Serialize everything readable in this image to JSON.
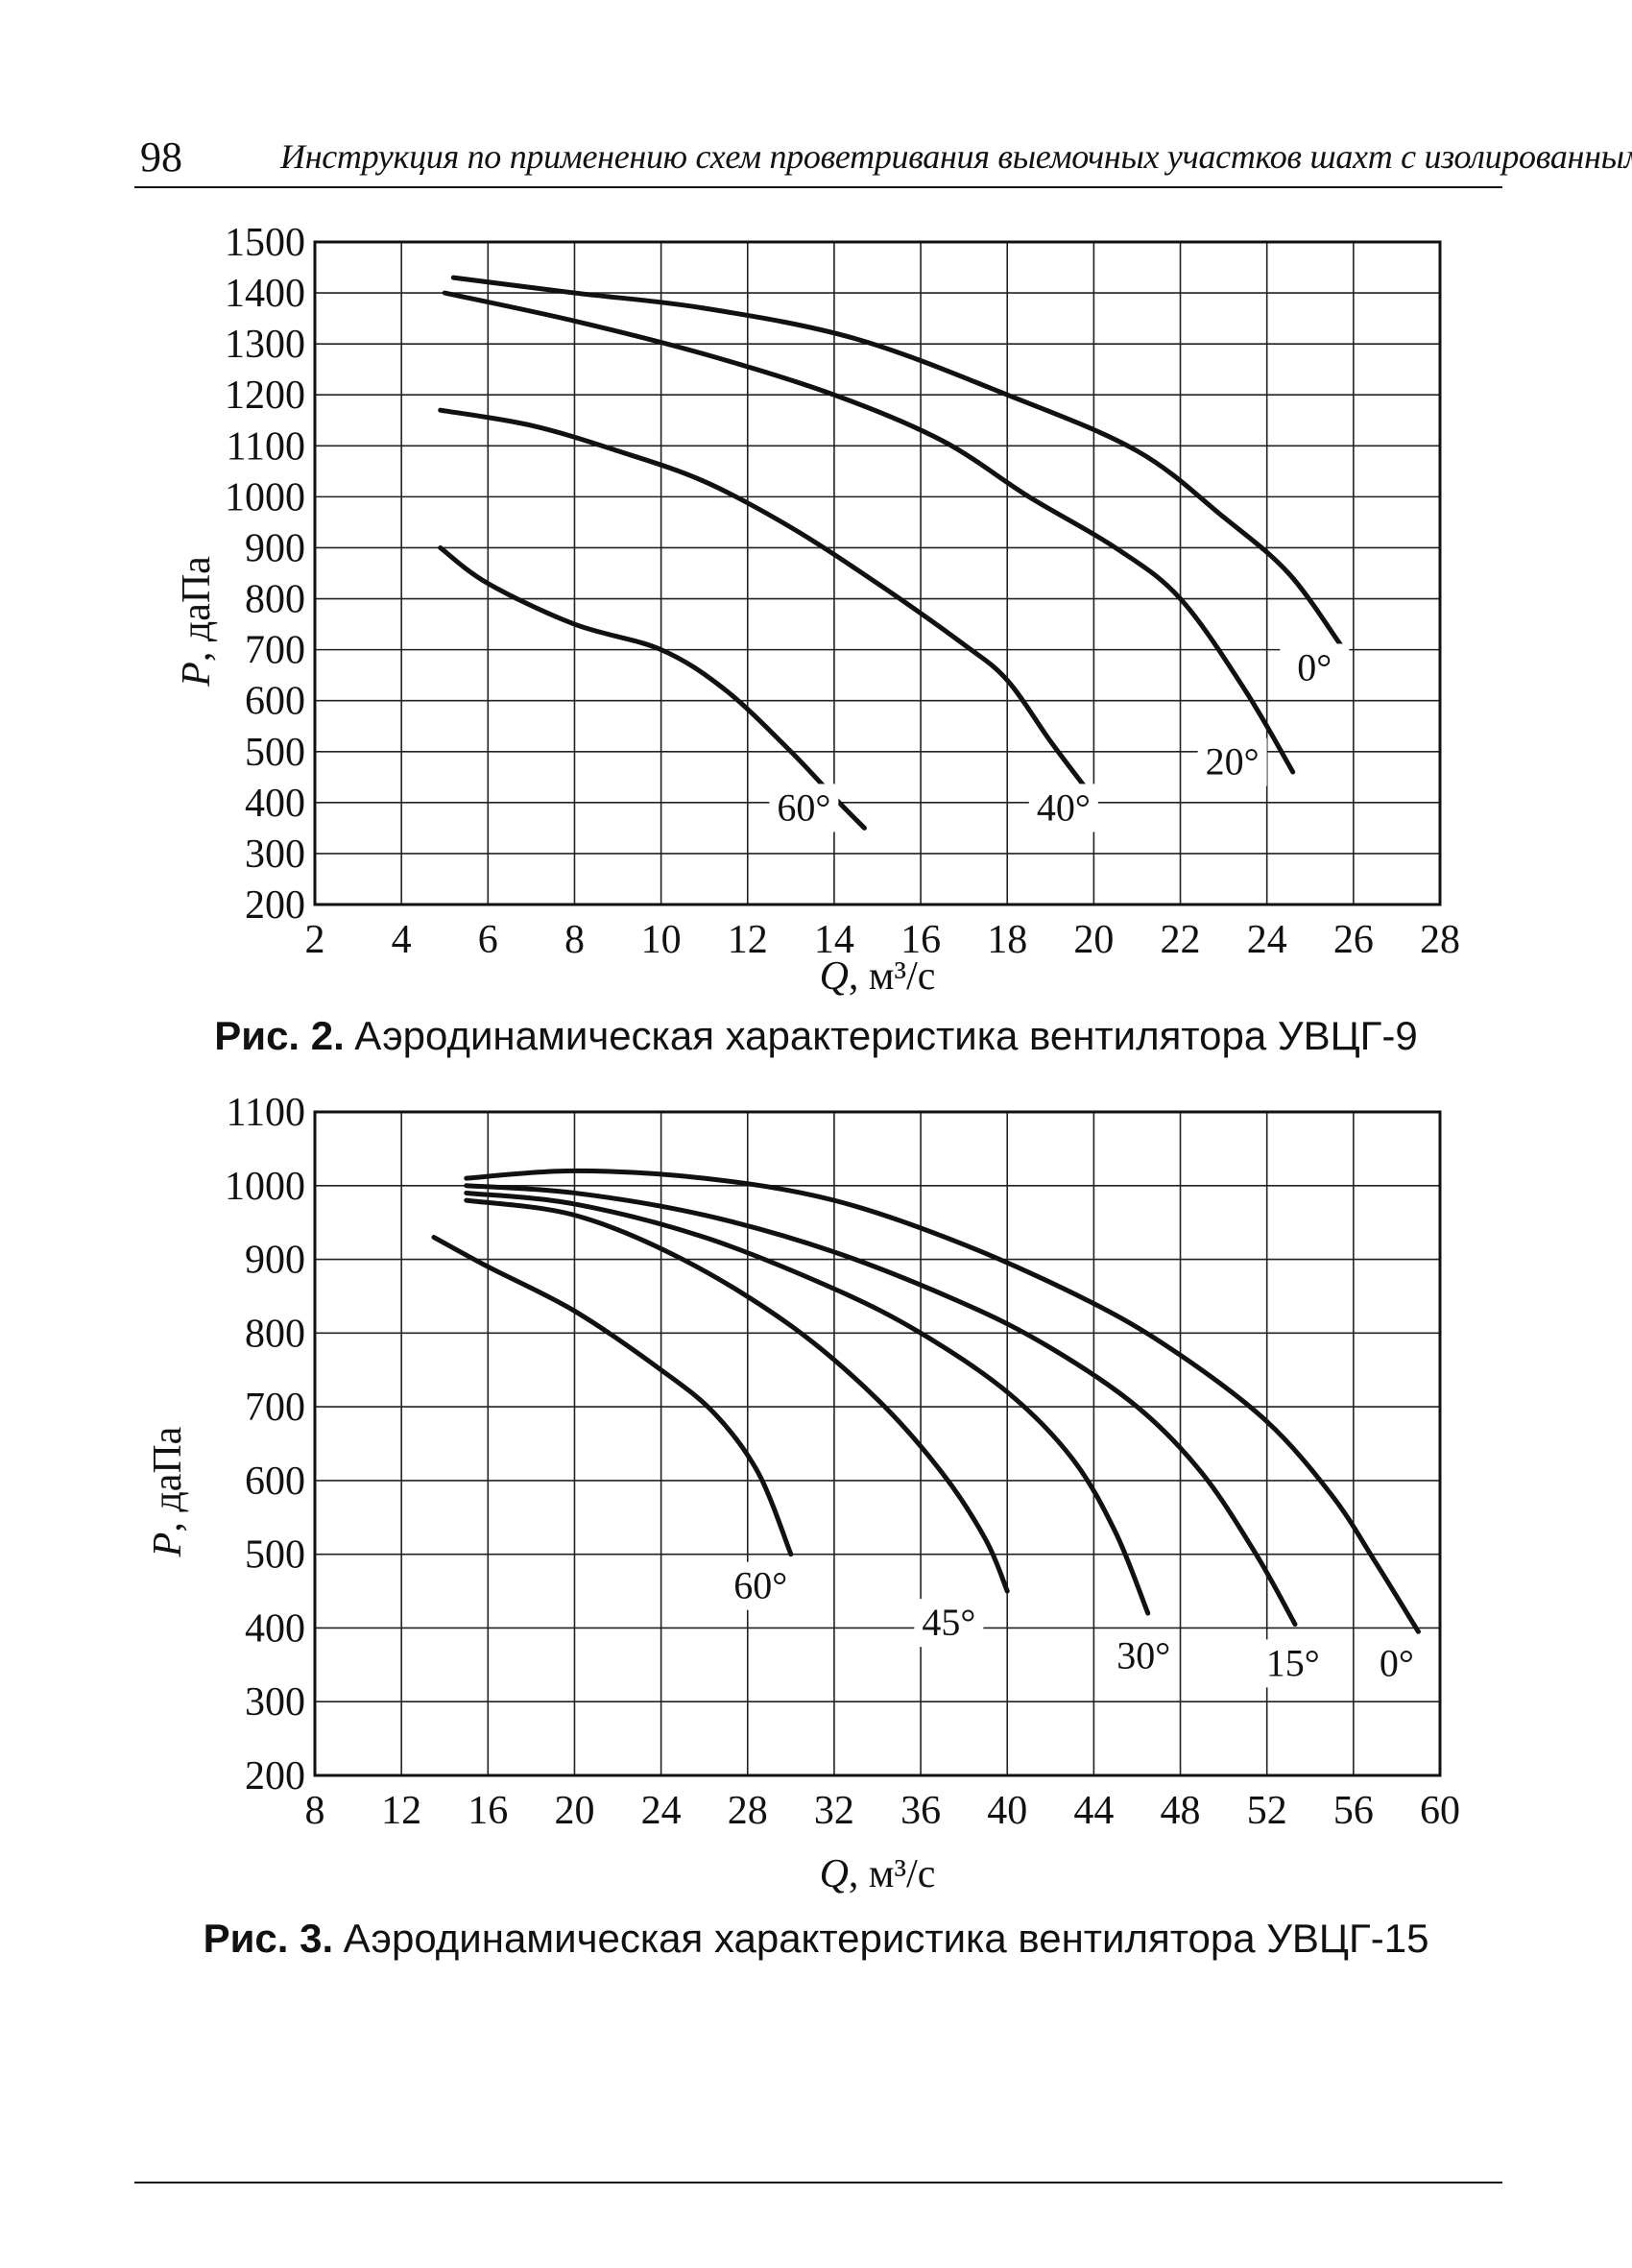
{
  "page": {
    "number": "98",
    "running_title": "Инструкция по применению схем проветривания выемочных участков шахт с изолированным"
  },
  "figures": [
    {
      "caption_prefix": "Рис. 2.",
      "caption_text": "Аэродинамическая характеристика вентилятора УВЦГ-9"
    },
    {
      "caption_prefix": "Рис. 3.",
      "caption_text": "Аэродинамическая характеристика вентилятора УВЦГ-15"
    }
  ],
  "chart_data": [
    {
      "type": "line",
      "xlabel_prefix": "Q",
      "xlabel_suffix": ", м³/с",
      "ylabel_prefix": "P",
      "ylabel_suffix": ", даПа",
      "xlim": [
        2,
        28
      ],
      "ylim": [
        200,
        1500
      ],
      "x_ticks": [
        2,
        4,
        6,
        8,
        10,
        12,
        14,
        16,
        18,
        20,
        22,
        24,
        26,
        28
      ],
      "y_ticks": [
        200,
        300,
        400,
        500,
        600,
        700,
        800,
        900,
        1000,
        1100,
        1200,
        1300,
        1400,
        1500
      ],
      "grid": true,
      "series": [
        {
          "name": "0°",
          "label_pos": [
            25.1,
            640
          ],
          "points": [
            [
              5.2,
              1430
            ],
            [
              8,
              1400
            ],
            [
              11,
              1370
            ],
            [
              14.5,
              1310
            ],
            [
              18,
              1200
            ],
            [
              21,
              1090
            ],
            [
              23,
              960
            ],
            [
              24.5,
              850
            ],
            [
              25.7,
              710
            ]
          ]
        },
        {
          "name": "20°",
          "label_pos": [
            23.2,
            455
          ],
          "points": [
            [
              5,
              1400
            ],
            [
              8,
              1345
            ],
            [
              11,
              1280
            ],
            [
              14,
              1200
            ],
            [
              16.5,
              1110
            ],
            [
              18.5,
              1000
            ],
            [
              20.5,
              900
            ],
            [
              22,
              800
            ],
            [
              23.5,
              620
            ],
            [
              24.6,
              460
            ]
          ]
        },
        {
          "name": "40°",
          "label_pos": [
            19.3,
            365
          ],
          "points": [
            [
              4.9,
              1170
            ],
            [
              7,
              1140
            ],
            [
              9,
              1090
            ],
            [
              11,
              1030
            ],
            [
              13,
              940
            ],
            [
              15,
              830
            ],
            [
              17,
              710
            ],
            [
              18,
              640
            ],
            [
              19,
              520
            ],
            [
              19.8,
              430
            ]
          ]
        },
        {
          "name": "60°",
          "label_pos": [
            13.3,
            365
          ],
          "points": [
            [
              4.9,
              900
            ],
            [
              6,
              830
            ],
            [
              8,
              750
            ],
            [
              10,
              700
            ],
            [
              11.5,
              620
            ],
            [
              13,
              500
            ],
            [
              14,
              410
            ],
            [
              14.7,
              350
            ]
          ]
        }
      ]
    },
    {
      "type": "line",
      "xlabel_prefix": "Q",
      "xlabel_suffix": ", м³/с",
      "ylabel_prefix": "P",
      "ylabel_suffix": ", даПа",
      "xlim": [
        8,
        60
      ],
      "ylim": [
        200,
        1100
      ],
      "x_ticks": [
        8,
        12,
        16,
        20,
        24,
        28,
        32,
        36,
        40,
        44,
        48,
        52,
        56,
        60
      ],
      "y_ticks": [
        200,
        300,
        400,
        500,
        600,
        700,
        800,
        900,
        1000,
        1100
      ],
      "grid": true,
      "series": [
        {
          "name": "0°",
          "label_pos": [
            58,
            335
          ],
          "points": [
            [
              15,
              1010
            ],
            [
              20,
              1020
            ],
            [
              26,
              1010
            ],
            [
              32,
              980
            ],
            [
              38,
              920
            ],
            [
              44,
              840
            ],
            [
              48,
              770
            ],
            [
              52,
              680
            ],
            [
              55,
              580
            ],
            [
              57,
              490
            ],
            [
              59,
              395
            ]
          ]
        },
        {
          "name": "15°",
          "label_pos": [
            53.2,
            335
          ],
          "points": [
            [
              15,
              1000
            ],
            [
              20,
              990
            ],
            [
              26,
              960
            ],
            [
              32,
              910
            ],
            [
              38,
              840
            ],
            [
              42,
              780
            ],
            [
              46,
              700
            ],
            [
              49,
              610
            ],
            [
              51.5,
              500
            ],
            [
              53.3,
              405
            ]
          ]
        },
        {
          "name": "30°",
          "label_pos": [
            46.3,
            345
          ],
          "points": [
            [
              15,
              990
            ],
            [
              20,
              975
            ],
            [
              26,
              930
            ],
            [
              32,
              860
            ],
            [
              36,
              800
            ],
            [
              40,
              720
            ],
            [
              43,
              630
            ],
            [
              45,
              530
            ],
            [
              46.5,
              420
            ]
          ]
        },
        {
          "name": "45°",
          "label_pos": [
            37.3,
            390
          ],
          "points": [
            [
              15,
              980
            ],
            [
              20,
              960
            ],
            [
              25,
              900
            ],
            [
              30,
              810
            ],
            [
              34,
              710
            ],
            [
              37,
              610
            ],
            [
              39,
              520
            ],
            [
              40,
              450
            ]
          ]
        },
        {
          "name": "60°",
          "label_pos": [
            28.6,
            440
          ],
          "points": [
            [
              13.5,
              930
            ],
            [
              16,
              890
            ],
            [
              20,
              830
            ],
            [
              24,
              750
            ],
            [
              26.5,
              690
            ],
            [
              28.5,
              610
            ],
            [
              30,
              500
            ]
          ]
        }
      ]
    }
  ]
}
